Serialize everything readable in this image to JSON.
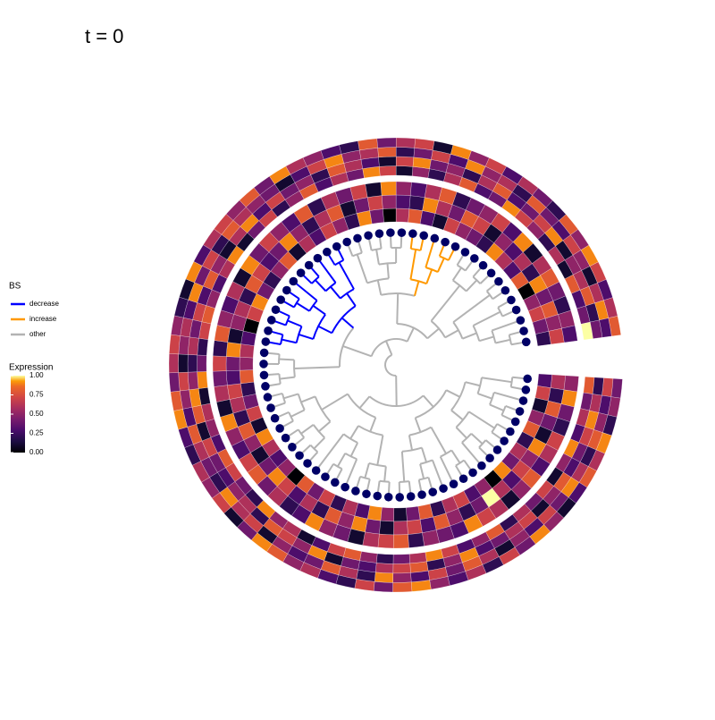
{
  "chart_data": {
    "type": "circular-tree",
    "title": "t = 0",
    "legend_title": "BS",
    "series": [
      {
        "name": "decrease",
        "color": "#0000ff"
      },
      {
        "name": "increase",
        "color": "#ff9900"
      },
      {
        "name": "other",
        "color": "#b3b3b3"
      }
    ],
    "tip_color": "#000066",
    "tree": [
      [
        [
          [
            [
              [
                0,
                1
              ],
              [
                2,
                [
                  3,
                  4
                ]
              ]
            ],
            [
              [
                5,
                6
              ],
              [
                [
                  7,
                  8
                ],
                9
              ]
            ]
          ],
          [
            [
              [
                10,
                11
              ],
              12
            ],
            [
              [
                13,
                [
                  14,
                  15
                ]
              ],
              [
                16,
                17
              ]
            ]
          ]
        ],
        [
          [
            [
              [
                18,
                19
              ],
              [
                20,
                21
              ]
            ],
            [
              [
                22,
                [
                  23,
                  24
                ]
              ],
              25
            ]
          ],
          [
            [
              [
                26,
                27
              ],
              [
                28,
                29
              ]
            ],
            [
              [
                30,
                31
              ],
              [
                32,
                33
              ]
            ]
          ]
        ]
      ],
      [
        [
          [
            [
              34,
              35
            ],
            [
              36,
              37
            ]
          ],
          [
            [
              [
                [
                  38,
                  39
                ],
                [
                  40,
                  41
                ]
              ],
              [
                [
                  42,
                  43
                ],
                44
              ]
            ],
            [
              [
                [
                  45,
                  46
                ],
                47
              ],
              [
                48,
                49
              ]
            ]
          ]
        ],
        [
          [
            [
              [
                50,
                51
              ],
              [
                [
                  52,
                  53
                ],
                [
                  54,
                  55
                ]
              ]
            ],
            [
              [
                56,
                57
              ],
              [
                58,
                [
                  59,
                  60
                ]
              ]
            ]
          ],
          [
            [
              [
                61,
                62
              ],
              [
                63,
                64
              ]
            ],
            [
              [
                65,
                66
              ],
              [
                [
                  67,
                  68
                ],
                [
                  69,
                  [
                    70,
                    71
                  ]
                ]
              ]
            ]
          ]
        ]
      ]
    ],
    "tip_group": [
      2,
      2,
      2,
      2,
      2,
      2,
      2,
      2,
      2,
      2,
      2,
      2,
      2,
      2,
      2,
      2,
      2,
      2,
      2,
      2,
      2,
      2,
      2,
      2,
      2,
      2,
      2,
      2,
      2,
      2,
      2,
      2,
      2,
      2,
      2,
      2,
      2,
      2,
      0,
      0,
      0,
      0,
      0,
      0,
      0,
      0,
      0,
      0,
      0,
      0,
      2,
      2,
      2,
      2,
      2,
      2,
      1,
      1,
      1,
      1,
      1,
      2,
      2,
      2,
      2,
      2,
      2,
      2,
      2,
      2,
      2,
      2
    ],
    "heatmap": {
      "title": "Expression",
      "lim": [
        0,
        1
      ],
      "ticks": [
        {
          "value": 1,
          "label": "1.00"
        },
        {
          "value": 0.75,
          "label": "0.75"
        },
        {
          "value": 0.5,
          "label": "0.50"
        },
        {
          "value": 0.25,
          "label": "0.25"
        },
        {
          "value": 0,
          "label": "0.00"
        }
      ],
      "inner": [
        [
          0.3,
          0.7,
          0.1,
          0.5,
          0.8,
          0.2,
          0.6,
          0.4,
          0.9,
          0,
          0.5,
          0.3,
          0.7,
          0.6,
          0.2,
          0.8,
          0.4,
          0.1,
          0.5,
          0.9,
          0.3,
          0.6,
          0.2,
          0.7,
          0.4,
          0.8,
          0,
          0.5,
          0.3,
          0.6,
          0.9,
          0.1,
          0.7,
          0.4,
          0.2,
          0.8,
          0.5,
          0.6,
          0.3,
          0,
          0.7,
          0.9,
          0.4,
          0.2,
          0.5,
          0.8,
          0.1,
          0.6,
          0.3,
          0.7,
          0.5,
          0.2,
          0.9,
          0.4,
          0,
          0.6,
          0.8,
          0.3,
          0.1,
          0.7,
          0.5,
          0.4,
          0.2,
          0.9,
          0.6,
          0.3,
          0.8,
          0,
          0.5,
          0.7,
          0.4,
          0.2
        ],
        [
          0.6,
          0.2,
          0.8,
          0.4,
          0.1,
          0.9,
          0.5,
          0.7,
          0.3,
          0.6,
          1,
          0.4,
          0.2,
          0.5,
          0.8,
          0.3,
          0.7,
          0.6,
          0.1,
          0.4,
          0.9,
          0.5,
          0.8,
          0.2,
          0.6,
          0.3,
          0.7,
          0.9,
          0.4,
          0.1,
          0.5,
          0.8,
          0.2,
          0.6,
          0.7,
          0.3,
          0.4,
          0.9,
          0.1,
          0.5,
          0.6,
          0.2,
          0.8,
          0.7,
          0.3,
          0.4,
          0.9,
          0.5,
          0.2,
          0.6,
          0.8,
          0.1,
          0.4,
          0.7,
          0.5,
          0.3,
          0.2,
          0.9,
          0.6,
          0.4,
          0.8,
          0.7,
          0.1,
          0.5,
          0.3,
          0.6,
          0.2,
          0.9,
          0.4,
          0.8,
          0.5,
          0.7
        ],
        [
          0.5,
          0.9,
          0.4,
          0.2,
          0.7,
          0.6,
          0.3,
          0.8,
          0.5,
          0.1,
          0.6,
          0.7,
          0.9,
          0.3,
          0.4,
          0.5,
          0.2,
          0.8,
          0.7,
          0.6,
          0.1,
          0.4,
          0.5,
          0.9,
          0.3,
          0.2,
          0.6,
          0.4,
          0.8,
          0.7,
          0.3,
          0.5,
          0.9,
          0.1,
          0.6,
          0.4,
          0.7,
          0.2,
          0.8,
          0.5,
          0.3,
          0.6,
          0.1,
          0.9,
          0.4,
          0.7,
          0.5,
          0.3,
          0.8,
          0.2,
          0.6,
          0.4,
          0.7,
          0.1,
          0.9,
          0.5,
          0.3,
          0.6,
          0.8,
          0.2,
          0.4,
          0.5,
          0.7,
          0.3,
          0.9,
          0.1,
          0.6,
          0.8,
          0.4,
          0.2,
          0.5,
          0.3
        ]
      ],
      "outer": [
        [
          0.8,
          0.4,
          0.6,
          0.3,
          0.9,
          0.5,
          0.1,
          0.7,
          0.4,
          0.6,
          0.2,
          0.8,
          0.5,
          0.3,
          0.7,
          0.9,
          0.6,
          0.4,
          0.2,
          0.5,
          0.8,
          0.7,
          0.3,
          0.1,
          0.6,
          0.5,
          0.9,
          0.2,
          0.4,
          0.7,
          0.8,
          0.3,
          0.5,
          0.6,
          0.1,
          0.9,
          0.4,
          0.2,
          0.7,
          0.8,
          0.5,
          0.3,
          0.6,
          0.9,
          0.1,
          0.4,
          0.7,
          0.2,
          0.5,
          0.8,
          0.3,
          0.6,
          0.4,
          0.9,
          0.7,
          0.1,
          0.5,
          0.2,
          0.6,
          0.8,
          0.3,
          0.4,
          0.9,
          0.7,
          0.5,
          0.2,
          0.6,
          0.1,
          0.8,
          0.3,
          0.4,
          1
        ],
        [
          0.2,
          0.6,
          0.9,
          0.7,
          0.4,
          0.3,
          0.8,
          0.5,
          0.1,
          0.7,
          0.6,
          0.4,
          0.3,
          0.9,
          0.5,
          0.2,
          0.8,
          0.7,
          0.6,
          0.3,
          0.4,
          0.1,
          0.9,
          0.5,
          0.7,
          0.8,
          0.2,
          0.6,
          0.5,
          0.3,
          0.4,
          0.7,
          0.1,
          0.8,
          0.9,
          0.5,
          0.2,
          0.6,
          0.4,
          0.7,
          0.3,
          0.8,
          0.5,
          0.1,
          0.6,
          0.9,
          0.3,
          0.7,
          0.4,
          0.5,
          0.2,
          0.8,
          0.6,
          0.3,
          0.1,
          0.7,
          0.9,
          0.4,
          0.5,
          0.2,
          0.6,
          0.8,
          0.3,
          0.4,
          0.7,
          0.9,
          0.1,
          0.5,
          0.6,
          0.8,
          0.2,
          0.4
        ],
        [
          0.7,
          0.3,
          0.5,
          0.8,
          0.2,
          0.6,
          0.9,
          0.4,
          0.7,
          0.3,
          0.5,
          0.1,
          0.6,
          0.8,
          0.4,
          0.7,
          0.3,
          0.5,
          0.9,
          0.2,
          0.6,
          0.8,
          0.4,
          0.3,
          0.5,
          0.1,
          0.7,
          0.6,
          0.9,
          0.2,
          0.4,
          0.6,
          0.8,
          0.3,
          0.5,
          0.7,
          0.1,
          0.5,
          0.6,
          0.3,
          0.9,
          0.4,
          0.7,
          0.2,
          0.8,
          0.6,
          0.5,
          0.4,
          0.1,
          0.3,
          0.7,
          0.9,
          0.5,
          0.6,
          0.8,
          0.2,
          0.4,
          0.7,
          0.3,
          0.9,
          0.5,
          0.6,
          0.2,
          0.8,
          0.4,
          0.3,
          0.7,
          0.5,
          0.1,
          0.6,
          0.9,
          0.3
        ],
        [
          0.4,
          0.5,
          0.2,
          0.9,
          0.6,
          0.8,
          0.3,
          0.1,
          0.5,
          0.9,
          0.4,
          0.7,
          0.2,
          0.6,
          0.3,
          0.5,
          0.9,
          0.8,
          0.4,
          0.7,
          0.2,
          0.3,
          0.6,
          0.5,
          0.8,
          0.9,
          0.4,
          0.1,
          0.7,
          0.5,
          0.6,
          0.2,
          0.3,
          0.9,
          0.8,
          0.4,
          0.6,
          0.7,
          0.5,
          0.2,
          0.1,
          0.9,
          0.3,
          0.6,
          0.7,
          0.5,
          0.8,
          0.4,
          0.9,
          0.6,
          0.5,
          0.3,
          0.2,
          0.8,
          0.4,
          0.6,
          0.7,
          0.1,
          0.9,
          0.5,
          0.7,
          0.3,
          0.6,
          0.4,
          0.2,
          0.8,
          0.5,
          0.9,
          0.7,
          0.3,
          0.6,
          0.8
        ]
      ]
    }
  }
}
